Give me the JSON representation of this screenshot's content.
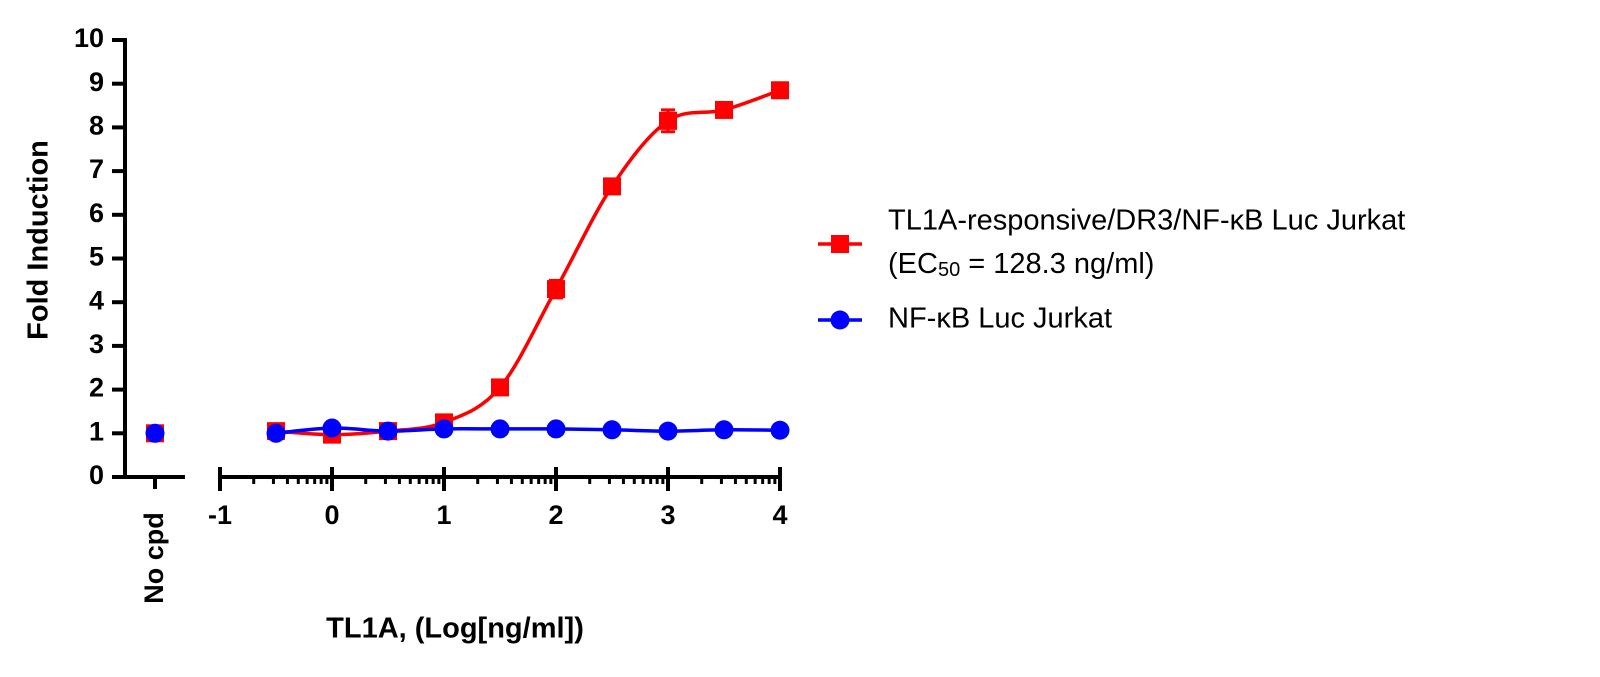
{
  "chart_data": {
    "type": "scatter",
    "ylabel": "Fold Induction",
    "xlabel": "TL1A, (Log[ng/ml])",
    "control_label": "No cpd",
    "x": [
      -0.5,
      0,
      0.5,
      1,
      1.5,
      2,
      2.5,
      3,
      3.5,
      4
    ],
    "xlim": [
      -1,
      4
    ],
    "xticks": [
      -1,
      0,
      1,
      2,
      3,
      4
    ],
    "ylim": [
      0,
      10
    ],
    "yticks": [
      0,
      1,
      2,
      3,
      4,
      5,
      6,
      7,
      8,
      9,
      10
    ],
    "log_minor_ticks": true,
    "series": [
      {
        "name": "TL1A-responsive/DR3/NF-κB Luc Jurkat",
        "color": "#ff0000",
        "marker": "square",
        "note": {
          "prefix": "(EC",
          "subscript": "50",
          "suffix": " = 128.3 ng/ml)"
        },
        "control_value": 1.0,
        "values": [
          1.05,
          0.97,
          1.05,
          1.25,
          2.05,
          4.3,
          6.65,
          8.15,
          8.4,
          8.85
        ],
        "errors": [
          0.05,
          0.05,
          0.05,
          0.08,
          0.1,
          0.2,
          0.1,
          0.25,
          0.15,
          0.1
        ]
      },
      {
        "name": "NF-κB Luc Jurkat",
        "color": "#0000ff",
        "marker": "circle",
        "control_value": 1.0,
        "values": [
          1.0,
          1.12,
          1.05,
          1.1,
          1.1,
          1.1,
          1.08,
          1.05,
          1.08,
          1.07
        ]
      }
    ]
  }
}
